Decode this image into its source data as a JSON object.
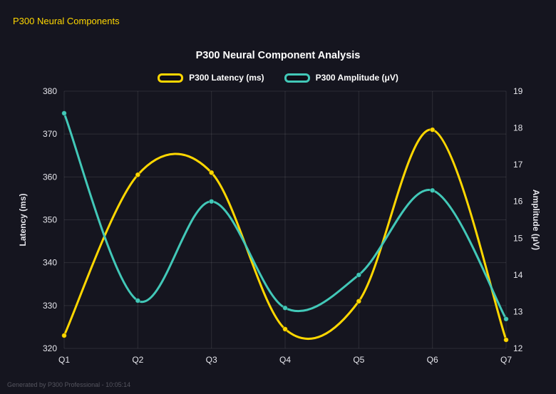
{
  "app": {
    "title": "P300 Neural Components"
  },
  "footer": {
    "text": "Generated by P300 Professional - 10:05:14"
  },
  "colors": {
    "background": "#15151f",
    "grid": "rgba(255,255,255,0.10)",
    "tick_text": "#e6e6ec",
    "title_text": "#ffffff",
    "accent_yellow": "#ffd700",
    "accent_teal": "#42c8b8"
  },
  "chart_data": {
    "type": "line",
    "title": "P300 Neural Component Analysis",
    "categories": [
      "Q1",
      "Q2",
      "Q3",
      "Q4",
      "Q5",
      "Q6",
      "Q7"
    ],
    "series": [
      {
        "name": "P300 Latency (ms)",
        "axis": "left",
        "color": "#ffd700",
        "values": [
          323,
          360.5,
          361,
          324.5,
          331,
          371,
          322
        ]
      },
      {
        "name": "P300 Amplitude (μV)",
        "axis": "right",
        "color": "#42c8b8",
        "values": [
          18.4,
          13.3,
          16.0,
          13.1,
          14.0,
          16.3,
          12.8
        ]
      }
    ],
    "left_axis": {
      "label": "Latency (ms)",
      "min": 320,
      "max": 380,
      "step": 10
    },
    "right_axis": {
      "label": "Amplitude (μV)",
      "min": 12,
      "max": 19,
      "step": 1
    },
    "grid": true,
    "legend_position": "top",
    "line_style": "smooth"
  }
}
